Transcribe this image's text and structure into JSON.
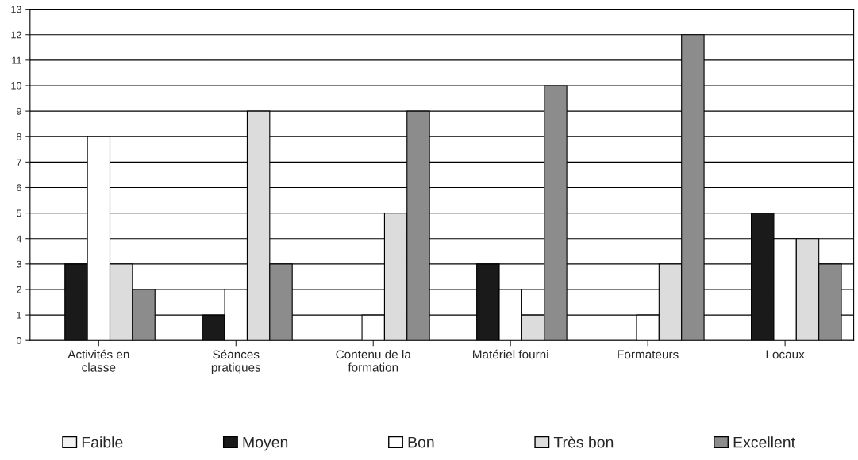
{
  "chart_data": {
    "type": "bar",
    "categories": [
      "Activités en classe",
      "Séances pratiques",
      "Contenu de la formation",
      "Matériel fourni",
      "Formateurs",
      "Locaux"
    ],
    "series": [
      {
        "name": "Faible",
        "color": "#f2f2f2",
        "values": [
          0,
          0,
          0,
          0,
          0,
          0
        ]
      },
      {
        "name": "Moyen",
        "color": "#1a1a1a",
        "values": [
          3,
          1,
          0,
          3,
          0,
          5
        ]
      },
      {
        "name": "Bon",
        "color": "#ffffff",
        "values": [
          8,
          2,
          1,
          2,
          1,
          4
        ]
      },
      {
        "name": "Très bon",
        "color": "#dcdcdc",
        "values": [
          3,
          9,
          5,
          1,
          3,
          4
        ]
      },
      {
        "name": "Excellent",
        "color": "#8c8c8c",
        "values": [
          2,
          3,
          9,
          10,
          12,
          3
        ]
      }
    ],
    "ylim": [
      0,
      13
    ],
    "yticks": [
      0,
      1,
      2,
      3,
      4,
      5,
      6,
      7,
      8,
      9,
      10,
      11,
      12,
      13
    ],
    "grid": "y",
    "legend": "bottom"
  }
}
